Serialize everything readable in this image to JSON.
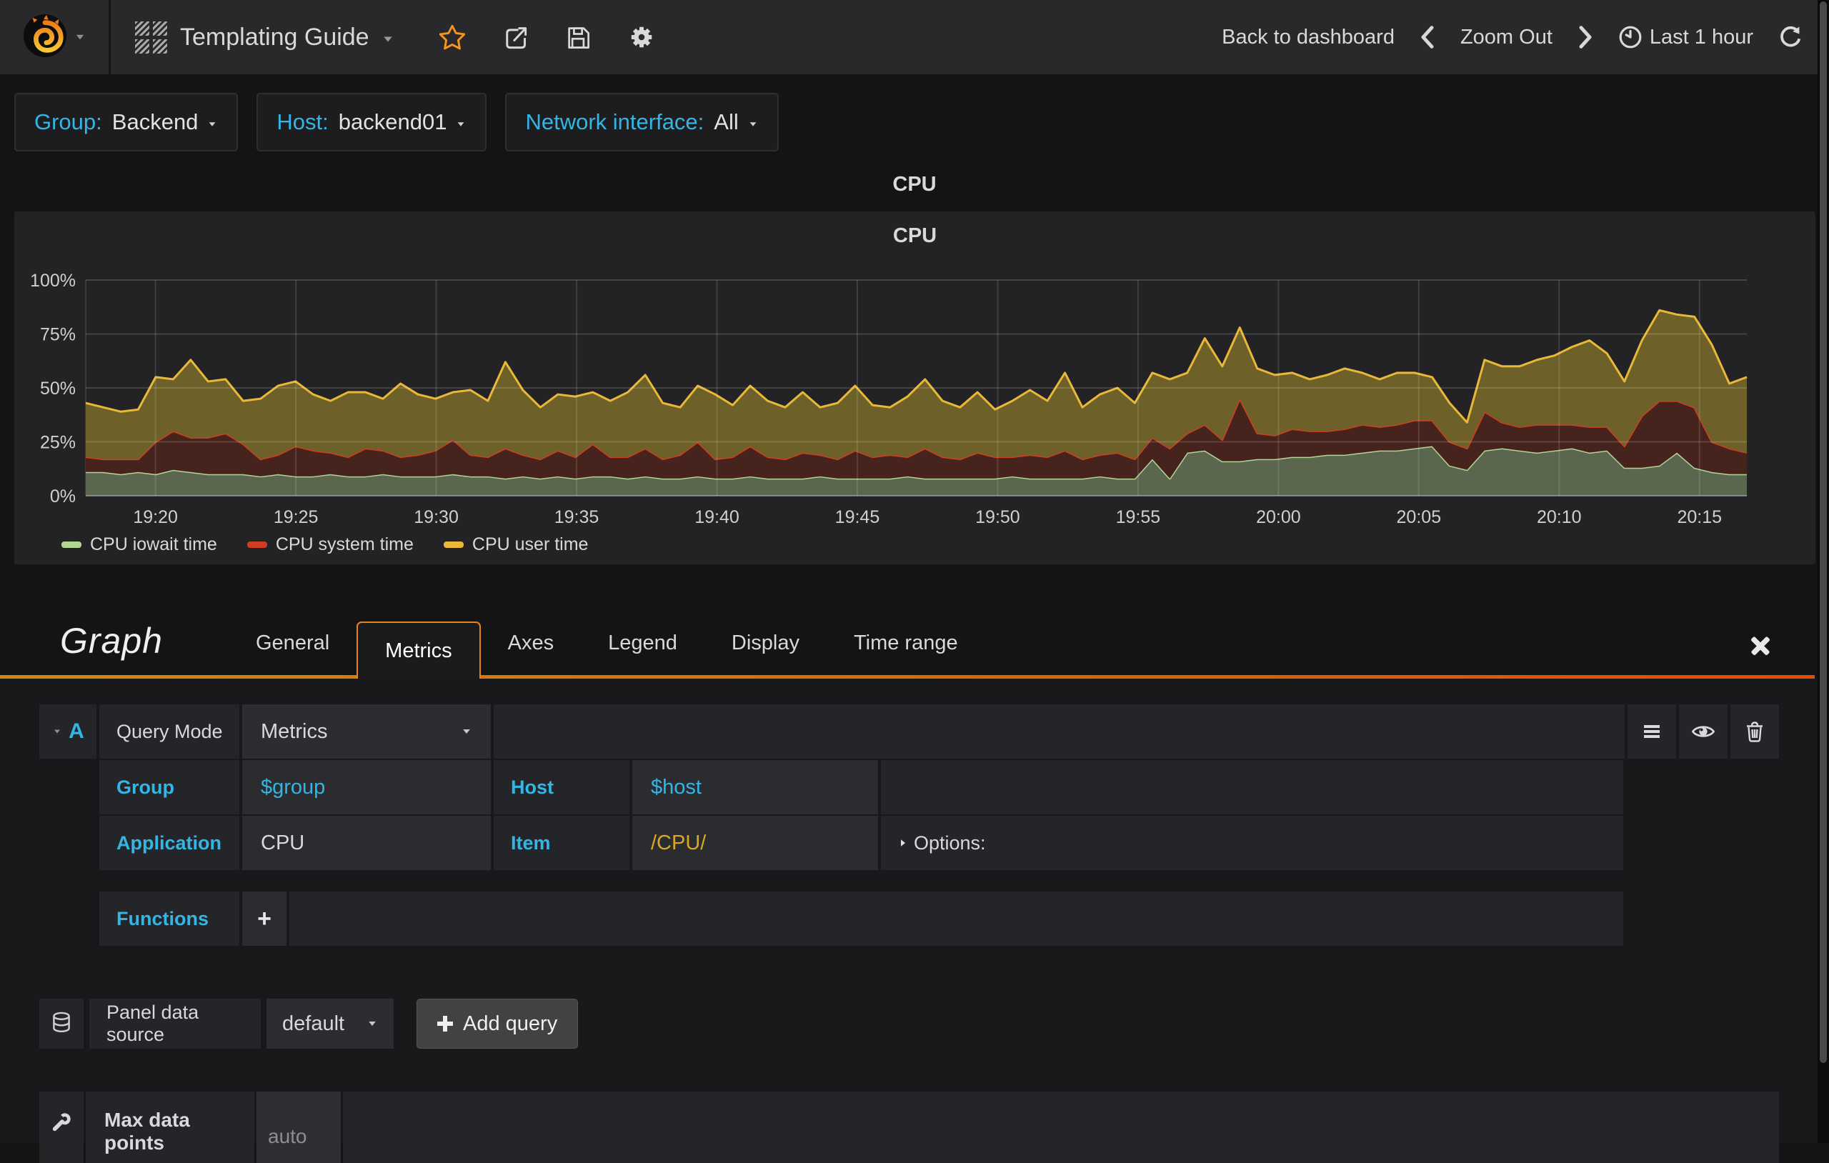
{
  "navbar": {
    "title": "Templating Guide",
    "back_to_dashboard": "Back to dashboard",
    "zoom_out": "Zoom Out",
    "time_range": "Last 1 hour"
  },
  "variables": [
    {
      "label": "Group:",
      "value": "Backend"
    },
    {
      "label": "Host:",
      "value": "backend01"
    },
    {
      "label": "Network interface:",
      "value": "All"
    }
  ],
  "panel": {
    "title": "CPU",
    "chart_title": "CPU"
  },
  "chart_data": {
    "type": "area",
    "stacked": true,
    "title": "CPU",
    "ylabel": "",
    "xlabel": "",
    "y_max": 100,
    "y_ticks": [
      "0%",
      "25%",
      "50%",
      "75%",
      "100%"
    ],
    "x_ticks": [
      "19:20",
      "19:25",
      "19:30",
      "19:35",
      "19:40",
      "19:45",
      "19:50",
      "19:55",
      "20:00",
      "20:05",
      "20:10",
      "20:15"
    ],
    "x_tick_first_frac": 0.042,
    "x_tick_step_frac": 0.0845,
    "grid": true,
    "legend_position": "bottom",
    "series": [
      {
        "name": "CPU iowait time",
        "line": "#b3d694",
        "fill": "#5a664e",
        "values": [
          11,
          11,
          10,
          11,
          10,
          12,
          11,
          10,
          10,
          10,
          9,
          10,
          9,
          9,
          10,
          9,
          9,
          10,
          9,
          9,
          9,
          10,
          9,
          9,
          8,
          9,
          8,
          9,
          8,
          9,
          9,
          8,
          9,
          8,
          8,
          9,
          8,
          8,
          9,
          8,
          8,
          8,
          9,
          8,
          8,
          8,
          8,
          9,
          8,
          8,
          8,
          8,
          8,
          9,
          8,
          8,
          8,
          8,
          9,
          8,
          8,
          17,
          8,
          20,
          21,
          16,
          16,
          17,
          17,
          18,
          18,
          19,
          19,
          20,
          21,
          21,
          22,
          23,
          14,
          12,
          21,
          22,
          21,
          20,
          21,
          22,
          20,
          21,
          13,
          13,
          14,
          20,
          13,
          11,
          10,
          10
        ]
      },
      {
        "name": "CPU system time",
        "line": "#cf3e22",
        "fill": "#46231c",
        "values": [
          7,
          6,
          7,
          6,
          15,
          18,
          16,
          17,
          19,
          14,
          8,
          9,
          14,
          12,
          10,
          9,
          13,
          11,
          9,
          10,
          12,
          16,
          10,
          9,
          14,
          10,
          9,
          12,
          10,
          15,
          9,
          10,
          13,
          9,
          11,
          16,
          9,
          10,
          14,
          10,
          9,
          12,
          10,
          9,
          13,
          10,
          11,
          9,
          14,
          10,
          9,
          12,
          10,
          9,
          11,
          10,
          13,
          9,
          10,
          12,
          9,
          10,
          14,
          9,
          12,
          10,
          29,
          12,
          11,
          13,
          12,
          11,
          12,
          13,
          11,
          12,
          13,
          12,
          11,
          10,
          18,
          12,
          11,
          13,
          12,
          11,
          12,
          11,
          10,
          24,
          30,
          24,
          28,
          14,
          12,
          10
        ]
      },
      {
        "name": "CPU user time",
        "line": "#eab839",
        "fill": "#6d6129",
        "values": [
          25,
          24,
          22,
          23,
          30,
          24,
          36,
          26,
          25,
          20,
          28,
          32,
          30,
          26,
          24,
          30,
          26,
          24,
          34,
          28,
          24,
          22,
          30,
          26,
          40,
          30,
          24,
          26,
          28,
          24,
          26,
          30,
          34,
          26,
          22,
          26,
          30,
          24,
          28,
          26,
          24,
          28,
          22,
          26,
          30,
          24,
          22,
          28,
          32,
          26,
          24,
          28,
          22,
          26,
          30,
          26,
          36,
          24,
          28,
          30,
          26,
          30,
          32,
          28,
          40,
          34,
          33,
          30,
          28,
          26,
          24,
          26,
          28,
          24,
          22,
          24,
          22,
          20,
          18,
          12,
          24,
          26,
          28,
          30,
          32,
          36,
          40,
          34,
          30,
          35,
          42,
          40,
          42,
          45,
          30,
          35
        ]
      }
    ]
  },
  "editor": {
    "panel_type": "Graph",
    "tabs": [
      "General",
      "Metrics",
      "Axes",
      "Legend",
      "Display",
      "Time range"
    ],
    "active_tab": "Metrics",
    "query": {
      "letter": "A",
      "query_mode_label": "Query Mode",
      "query_mode_value": "Metrics",
      "group_label": "Group",
      "group_value": "$group",
      "host_label": "Host",
      "host_value": "$host",
      "app_label": "Application",
      "app_value": "CPU",
      "item_label": "Item",
      "item_value": "/CPU/",
      "options_label": "Options:",
      "functions_label": "Functions",
      "add_function_label": "+"
    },
    "datasource": {
      "label": "Panel data source",
      "value": "default",
      "add_query_label": "Add query"
    },
    "settings": {
      "max_data_points_label": "Max data points",
      "max_data_points_placeholder": "auto"
    }
  },
  "colors": {
    "accent_blue": "#33b5e5",
    "star_orange": "#f6951e",
    "tab_gradient_left": "#cf8a0e",
    "tab_gradient_right": "#e24d00"
  }
}
